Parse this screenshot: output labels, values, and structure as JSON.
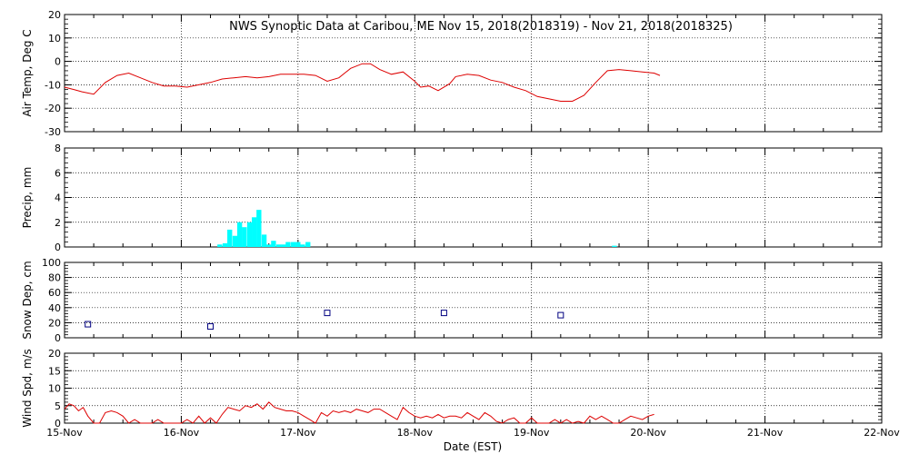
{
  "title": "NWS Synoptic Data at Caribou, ME    Nov 15, 2018(2018319) - Nov 21, 2018(2018325)",
  "xlabel": "Date (EST)",
  "x_ticks": [
    "15-Nov",
    "16-Nov",
    "17-Nov",
    "18-Nov",
    "19-Nov",
    "20-Nov",
    "21-Nov",
    "22-Nov"
  ],
  "colors": {
    "temp": "#dd0000",
    "precip": "#00ffff",
    "snow": "#000080",
    "wind": "#dd0000",
    "axes": "#000000"
  },
  "chart_data": [
    {
      "type": "line",
      "ylabel": "Air Temp, Deg C",
      "ylim": [
        -30,
        20
      ],
      "yticks": [
        20,
        10,
        0,
        -10,
        -20,
        -30
      ],
      "grid": true,
      "x_unit": "days since 15-Nov 00:00 EST",
      "series": [
        {
          "x": [
            0,
            0.08,
            0.15,
            0.25,
            0.35,
            0.45,
            0.55,
            0.65,
            0.75,
            0.85,
            0.95,
            1.05,
            1.15,
            1.25,
            1.35,
            1.45,
            1.55,
            1.65,
            1.75,
            1.85,
            1.95,
            2.05,
            2.15,
            2.25,
            2.35,
            2.45,
            2.55,
            2.62,
            2.7,
            2.8,
            2.9,
            3.0,
            3.05,
            3.12,
            3.2,
            3.3,
            3.35,
            3.45,
            3.55,
            3.65,
            3.75,
            3.85,
            3.95,
            4.05,
            4.15,
            4.25,
            4.35,
            4.45,
            4.55,
            4.65,
            4.75,
            4.85,
            4.95,
            5.05,
            5.1
          ],
          "y": [
            -11,
            -12,
            -13,
            -14,
            -9,
            -6,
            -5,
            -7,
            -9,
            -10.5,
            -10.5,
            -11,
            -10,
            -9,
            -7.5,
            -7,
            -6.5,
            -7,
            -6.5,
            -5.5,
            -5.5,
            -5.5,
            -6,
            -8.5,
            -7,
            -3,
            -1,
            -1,
            -3.5,
            -5.5,
            -4.5,
            -8.5,
            -11,
            -10.5,
            -12.5,
            -9.5,
            -6.5,
            -5.5,
            -6,
            -8,
            -9,
            -11,
            -12.5,
            -15,
            -16,
            -17,
            -17,
            -14.5,
            -9,
            -4,
            -3.5,
            -4,
            -4.5,
            -5,
            -6
          ]
        }
      ]
    },
    {
      "type": "bar",
      "ylabel": "Precip, mm",
      "ylim": [
        0,
        8
      ],
      "yticks": [
        8,
        6,
        4,
        2,
        0
      ],
      "grid": true,
      "x_unit": "days since 15-Nov 00:00 EST",
      "bar_width_days": 0.0417,
      "series": [
        {
          "x": [
            1.33,
            1.375,
            1.415,
            1.46,
            1.5,
            1.54,
            1.585,
            1.625,
            1.665,
            1.71,
            1.75,
            1.79,
            1.835,
            1.875,
            1.915,
            1.96,
            2.0,
            2.04,
            2.085,
            2.125,
            2.165,
            2.21,
            2.25,
            2.29,
            2.335,
            2.375,
            2.415,
            2.46,
            2.5,
            2.54,
            2.585,
            2.625,
            2.665,
            2.71,
            4.71
          ],
          "y": [
            0.2,
            0.3,
            1.4,
            0.9,
            2.0,
            1.6,
            2.0,
            2.4,
            3.0,
            1.0,
            0.2,
            0.5,
            0.2,
            0.2,
            0.4,
            0.4,
            0.4,
            0.2,
            0.4,
            0,
            0,
            0,
            0,
            0,
            0,
            0,
            0,
            0,
            0,
            0,
            0,
            0,
            0,
            0,
            0.1
          ]
        }
      ]
    },
    {
      "type": "scatter",
      "ylabel": "Snow Dep, cm",
      "ylim": [
        0,
        100
      ],
      "yticks": [
        100,
        80,
        60,
        40,
        20,
        0
      ],
      "grid": true,
      "x_unit": "days since 15-Nov 00:00 EST",
      "series": [
        {
          "x": [
            0.2,
            1.25,
            2.25,
            3.25,
            4.25
          ],
          "y": [
            18,
            15,
            33,
            33,
            30
          ]
        }
      ]
    },
    {
      "type": "line",
      "ylabel": "Wind Spd, m/s",
      "ylim": [
        0,
        20
      ],
      "yticks": [
        20,
        15,
        10,
        5,
        0
      ],
      "grid": true,
      "x_unit": "days since 15-Nov 00:00 EST",
      "series": [
        {
          "x": [
            0,
            0.04,
            0.08,
            0.12,
            0.16,
            0.2,
            0.25,
            0.3,
            0.35,
            0.4,
            0.45,
            0.5,
            0.55,
            0.6,
            0.65,
            0.7,
            0.75,
            0.8,
            0.85,
            0.9,
            0.95,
            1.0,
            1.05,
            1.1,
            1.15,
            1.2,
            1.25,
            1.3,
            1.35,
            1.4,
            1.45,
            1.5,
            1.55,
            1.6,
            1.65,
            1.7,
            1.75,
            1.8,
            1.85,
            1.9,
            1.95,
            2.0,
            2.05,
            2.1,
            2.15,
            2.2,
            2.25,
            2.3,
            2.35,
            2.4,
            2.45,
            2.5,
            2.55,
            2.6,
            2.65,
            2.7,
            2.75,
            2.8,
            2.85,
            2.9,
            2.95,
            3.0,
            3.05,
            3.1,
            3.15,
            3.2,
            3.25,
            3.3,
            3.35,
            3.4,
            3.45,
            3.5,
            3.55,
            3.6,
            3.65,
            3.7,
            3.75,
            3.8,
            3.85,
            3.9,
            3.95,
            4.0,
            4.05,
            4.1,
            4.15,
            4.2,
            4.25,
            4.3,
            4.35,
            4.4,
            4.45,
            4.5,
            4.55,
            4.6,
            4.65,
            4.7,
            4.75,
            4.8,
            4.85,
            4.9,
            4.95,
            5.0,
            5.05
          ],
          "y": [
            4,
            5.5,
            5,
            3.5,
            4.5,
            2,
            0,
            0,
            3,
            3.5,
            3,
            2,
            0,
            1,
            0,
            0,
            0,
            1,
            0,
            0,
            0,
            0,
            1,
            0,
            2,
            0,
            1.5,
            0,
            2.5,
            4.5,
            4,
            3.5,
            5,
            4.5,
            5.5,
            4,
            6,
            4.5,
            4,
            3.5,
            3.5,
            3,
            2,
            1,
            0,
            3,
            2,
            3.5,
            3,
            3.5,
            3,
            4,
            3.5,
            3,
            4,
            4,
            3,
            2,
            1,
            4.5,
            3,
            2,
            1.5,
            2,
            1.5,
            2.5,
            1.5,
            2,
            2,
            1.5,
            3,
            2,
            1,
            3,
            2,
            0.5,
            0,
            1,
            1.5,
            0,
            0,
            1.5,
            0,
            0,
            0,
            1,
            0,
            1,
            0,
            0.5,
            0,
            2,
            1,
            2,
            1,
            0,
            0,
            1,
            2,
            1.5,
            1,
            2,
            2.5
          ]
        }
      ]
    }
  ]
}
